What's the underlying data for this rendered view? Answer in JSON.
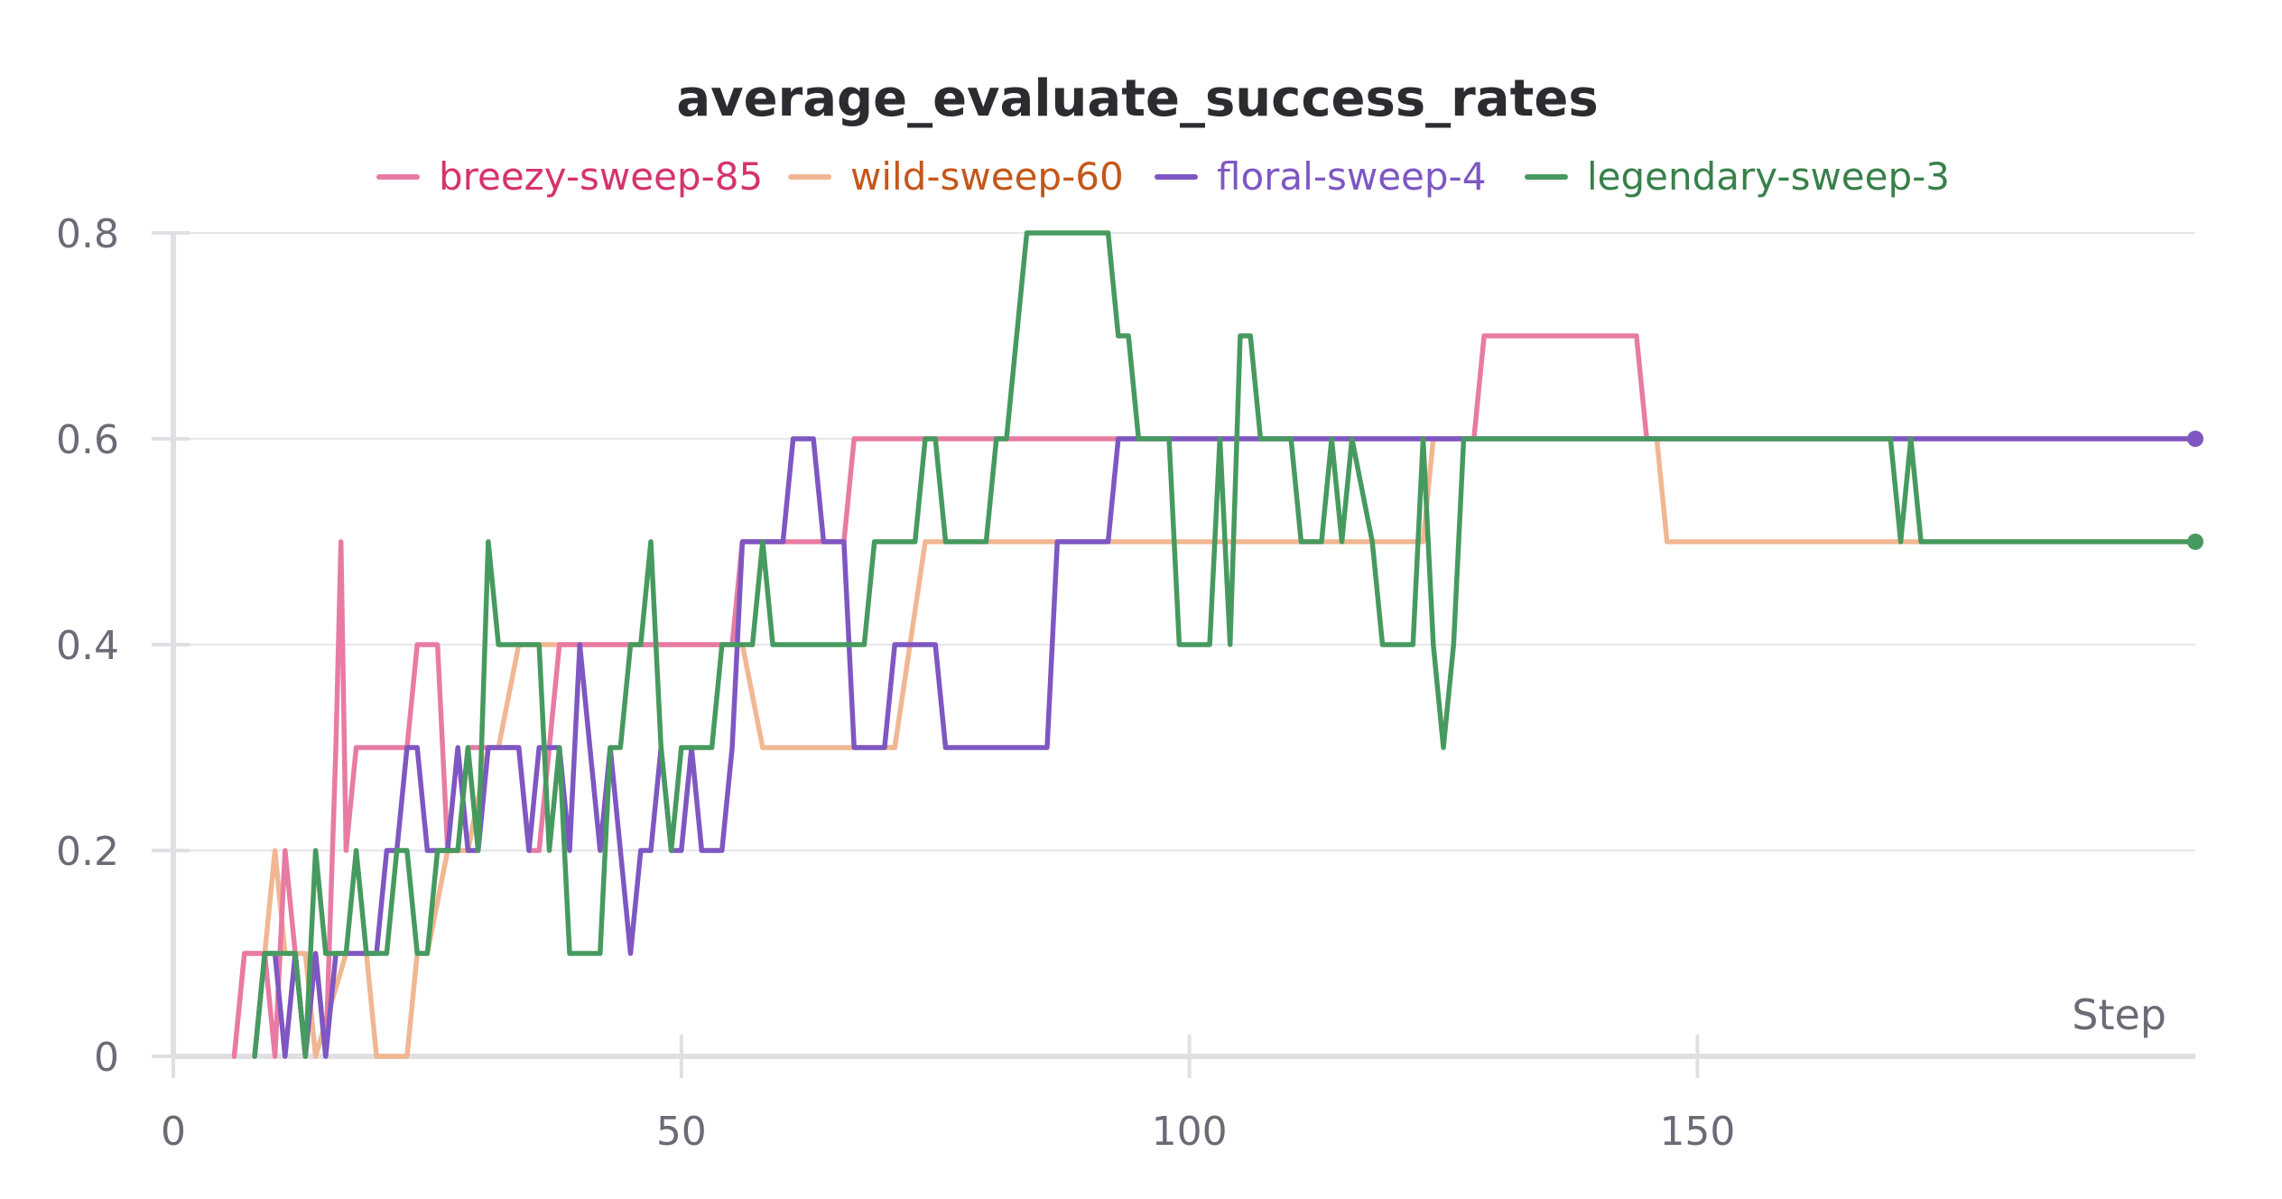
{
  "chart_data": {
    "type": "line",
    "title": "average_evaluate_success_rates",
    "xlabel": "Step",
    "ylabel": "",
    "xlim": [
      0,
      199
    ],
    "ylim": [
      0,
      0.8
    ],
    "x_ticks": [
      0,
      50,
      100,
      150
    ],
    "x_tick_labels": [
      "0",
      "50",
      "100",
      "150"
    ],
    "y_ticks": [
      0,
      0.2,
      0.4,
      0.6,
      0.8
    ],
    "y_tick_labels": [
      "0",
      "0.2",
      "0.4",
      "0.6",
      "0.8"
    ],
    "grid": "horizontal",
    "legend_position": "top-center",
    "series": [
      {
        "name": "breezy-sweep-85",
        "color": "#e87ba4",
        "text_color": "#d6336c",
        "end_marker": false,
        "points": [
          [
            6,
            0
          ],
          [
            7,
            0.1
          ],
          [
            9,
            0.1
          ],
          [
            10,
            0
          ],
          [
            11,
            0.2
          ],
          [
            12,
            0.1
          ],
          [
            13,
            0
          ],
          [
            14,
            0.1
          ],
          [
            15,
            0
          ],
          [
            16,
            0.3
          ],
          [
            16.5,
            0.5
          ],
          [
            17,
            0.2
          ],
          [
            18,
            0.3
          ],
          [
            23,
            0.3
          ],
          [
            24,
            0.4
          ],
          [
            26,
            0.4
          ],
          [
            27,
            0.2
          ],
          [
            28,
            0.2
          ],
          [
            29,
            0.3
          ],
          [
            34,
            0.3
          ],
          [
            35,
            0.2
          ],
          [
            36,
            0.2
          ],
          [
            37,
            0.3
          ],
          [
            38,
            0.4
          ],
          [
            41,
            0.4
          ],
          [
            55,
            0.4
          ],
          [
            56,
            0.5
          ],
          [
            66,
            0.5
          ],
          [
            67,
            0.6
          ],
          [
            128,
            0.6
          ],
          [
            129,
            0.7
          ],
          [
            144,
            0.7
          ],
          [
            145,
            0.6
          ],
          [
            199,
            0.6
          ]
        ]
      },
      {
        "name": "wild-sweep-60",
        "color": "#f0b792",
        "text_color": "#c4571a",
        "end_marker": false,
        "points": [
          [
            6,
            0
          ],
          [
            7,
            0.1
          ],
          [
            9,
            0.1
          ],
          [
            10,
            0.2
          ],
          [
            11,
            0.1
          ],
          [
            13,
            0.1
          ],
          [
            14,
            0
          ],
          [
            17,
            0.1
          ],
          [
            19,
            0.1
          ],
          [
            20,
            0
          ],
          [
            23,
            0
          ],
          [
            24,
            0.1
          ],
          [
            25,
            0.1
          ],
          [
            27,
            0.2
          ],
          [
            29,
            0.2
          ],
          [
            31,
            0.3
          ],
          [
            32,
            0.3
          ],
          [
            34,
            0.4
          ],
          [
            52,
            0.4
          ],
          [
            56,
            0.4
          ],
          [
            58,
            0.3
          ],
          [
            71,
            0.3
          ],
          [
            74,
            0.5
          ],
          [
            122,
            0.5
          ],
          [
            123,
            0.5
          ],
          [
            124,
            0.6
          ],
          [
            146,
            0.6
          ],
          [
            147,
            0.5
          ],
          [
            170,
            0.5
          ],
          [
            199,
            0.5
          ]
        ]
      },
      {
        "name": "floral-sweep-4",
        "color": "#7e57c2",
        "text_color": "#7e57c2",
        "end_marker": true,
        "points": [
          [
            8,
            0
          ],
          [
            9,
            0.1
          ],
          [
            10,
            0.1
          ],
          [
            11,
            0
          ],
          [
            12,
            0.1
          ],
          [
            13,
            0
          ],
          [
            14,
            0.1
          ],
          [
            15,
            0
          ],
          [
            16,
            0.1
          ],
          [
            20,
            0.1
          ],
          [
            21,
            0.2
          ],
          [
            22,
            0.2
          ],
          [
            23,
            0.3
          ],
          [
            24,
            0.3
          ],
          [
            25,
            0.2
          ],
          [
            27,
            0.2
          ],
          [
            28,
            0.3
          ],
          [
            29,
            0.2
          ],
          [
            30,
            0.2
          ],
          [
            31,
            0.3
          ],
          [
            34,
            0.3
          ],
          [
            35,
            0.2
          ],
          [
            36,
            0.3
          ],
          [
            38,
            0.3
          ],
          [
            39,
            0.2
          ],
          [
            40,
            0.4
          ],
          [
            41,
            0.3
          ],
          [
            42,
            0.2
          ],
          [
            43,
            0.3
          ],
          [
            44,
            0.2
          ],
          [
            45,
            0.1
          ],
          [
            46,
            0.2
          ],
          [
            47,
            0.2
          ],
          [
            48,
            0.3
          ],
          [
            49,
            0.2
          ],
          [
            50,
            0.2
          ],
          [
            51,
            0.3
          ],
          [
            52,
            0.2
          ],
          [
            54,
            0.2
          ],
          [
            55,
            0.3
          ],
          [
            56,
            0.5
          ],
          [
            59,
            0.5
          ],
          [
            60,
            0.5
          ],
          [
            61,
            0.6
          ],
          [
            63,
            0.6
          ],
          [
            64,
            0.5
          ],
          [
            66,
            0.5
          ],
          [
            67,
            0.3
          ],
          [
            70,
            0.3
          ],
          [
            71,
            0.4
          ],
          [
            75,
            0.4
          ],
          [
            76,
            0.3
          ],
          [
            86,
            0.3
          ],
          [
            87,
            0.5
          ],
          [
            92,
            0.5
          ],
          [
            93,
            0.6
          ],
          [
            199,
            0.6
          ]
        ]
      },
      {
        "name": "legendary-sweep-3",
        "color": "#479a5f",
        "text_color": "#38804b",
        "end_marker": true,
        "points": [
          [
            8,
            0
          ],
          [
            9,
            0.1
          ],
          [
            12,
            0.1
          ],
          [
            13,
            0
          ],
          [
            14,
            0.2
          ],
          [
            15,
            0.1
          ],
          [
            17,
            0.1
          ],
          [
            18,
            0.2
          ],
          [
            19,
            0.1
          ],
          [
            21,
            0.1
          ],
          [
            22,
            0.2
          ],
          [
            23,
            0.2
          ],
          [
            24,
            0.1
          ],
          [
            25,
            0.1
          ],
          [
            26,
            0.2
          ],
          [
            28,
            0.2
          ],
          [
            29,
            0.3
          ],
          [
            30,
            0.2
          ],
          [
            31,
            0.5
          ],
          [
            32,
            0.4
          ],
          [
            36,
            0.4
          ],
          [
            37,
            0.2
          ],
          [
            38,
            0.3
          ],
          [
            39,
            0.1
          ],
          [
            42,
            0.1
          ],
          [
            43,
            0.3
          ],
          [
            44,
            0.3
          ],
          [
            45,
            0.4
          ],
          [
            46,
            0.4
          ],
          [
            47,
            0.5
          ],
          [
            48,
            0.3
          ],
          [
            49,
            0.2
          ],
          [
            50,
            0.3
          ],
          [
            53,
            0.3
          ],
          [
            54,
            0.4
          ],
          [
            57,
            0.4
          ],
          [
            58,
            0.5
          ],
          [
            59,
            0.4
          ],
          [
            68,
            0.4
          ],
          [
            69,
            0.5
          ],
          [
            73,
            0.5
          ],
          [
            74,
            0.6
          ],
          [
            75,
            0.6
          ],
          [
            76,
            0.5
          ],
          [
            80,
            0.5
          ],
          [
            81,
            0.6
          ],
          [
            82,
            0.6
          ],
          [
            84,
            0.8
          ],
          [
            92,
            0.8
          ],
          [
            93,
            0.7
          ],
          [
            94,
            0.7
          ],
          [
            95,
            0.6
          ],
          [
            98,
            0.6
          ],
          [
            99,
            0.4
          ],
          [
            102,
            0.4
          ],
          [
            103,
            0.6
          ],
          [
            104,
            0.4
          ],
          [
            105,
            0.7
          ],
          [
            106,
            0.7
          ],
          [
            107,
            0.6
          ],
          [
            110,
            0.6
          ],
          [
            111,
            0.5
          ],
          [
            113,
            0.5
          ],
          [
            114,
            0.6
          ],
          [
            115,
            0.5
          ],
          [
            116,
            0.6
          ],
          [
            118,
            0.5
          ],
          [
            119,
            0.4
          ],
          [
            122,
            0.4
          ],
          [
            123,
            0.6
          ],
          [
            124,
            0.4
          ],
          [
            125,
            0.3
          ],
          [
            126,
            0.4
          ],
          [
            127,
            0.6
          ],
          [
            169,
            0.6
          ],
          [
            170,
            0.5
          ],
          [
            171,
            0.6
          ],
          [
            172,
            0.5
          ],
          [
            199,
            0.5
          ]
        ]
      }
    ]
  }
}
